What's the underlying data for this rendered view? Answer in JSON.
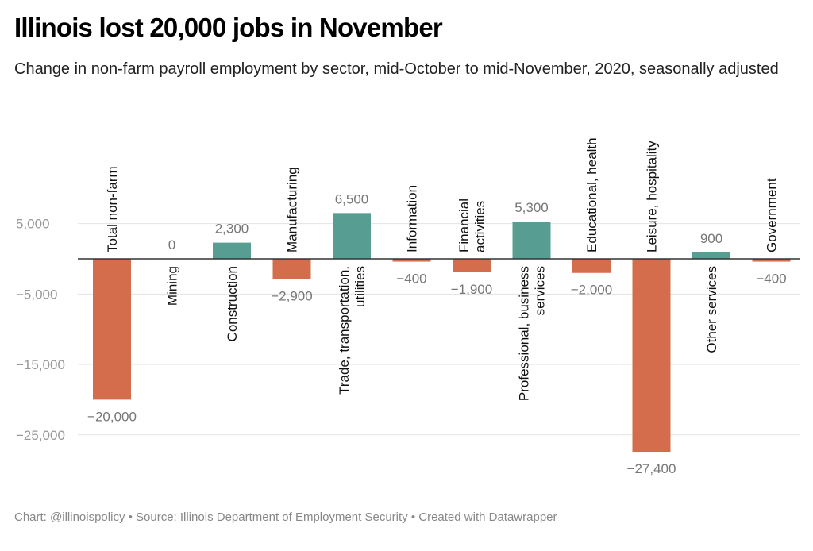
{
  "title": "Illinois lost 20,000 jobs in November",
  "subtitle": "Change in non-farm payroll employment by sector, mid-October to mid-November, 2020, seasonally adjusted",
  "footer": "Chart: @illinoispolicy • Source: Illinois Department of Employment Security • Created with Datawrapper",
  "colors": {
    "negative": "#d36d4b",
    "positive": "#589d92",
    "grid": "#e3e3e3",
    "baseline": "#333333"
  },
  "chart_data": {
    "type": "bar",
    "title": "Illinois lost 20,000 jobs in November",
    "xlabel": "",
    "ylabel": "",
    "ylim": [
      -29000,
      9000
    ],
    "yticks": [
      5000,
      -5000,
      -15000,
      -25000
    ],
    "ytick_labels": [
      "5,000",
      "−5,000",
      "−15,000",
      "−25,000"
    ],
    "grid": true,
    "categories": [
      [
        "Total non-farm"
      ],
      [
        "Mining"
      ],
      [
        "Construction"
      ],
      [
        "Manufacturing"
      ],
      [
        "Trade, transportation,",
        "utilities"
      ],
      [
        "Information"
      ],
      [
        "Financial",
        "activities"
      ],
      [
        "Professional, business",
        "services"
      ],
      [
        "Educational, health"
      ],
      [
        "Leisure, hospitality"
      ],
      [
        "Other services"
      ],
      [
        "Government"
      ]
    ],
    "values": [
      -20000,
      0,
      2300,
      -2900,
      6500,
      -400,
      -1900,
      5300,
      -2000,
      -27400,
      900,
      -400
    ],
    "value_labels": [
      "−20,000",
      "0",
      "2,300",
      "−2,900",
      "6,500",
      "−400",
      "−1,900",
      "5,300",
      "−2,000",
      "−27,400",
      "900",
      "−400"
    ]
  }
}
